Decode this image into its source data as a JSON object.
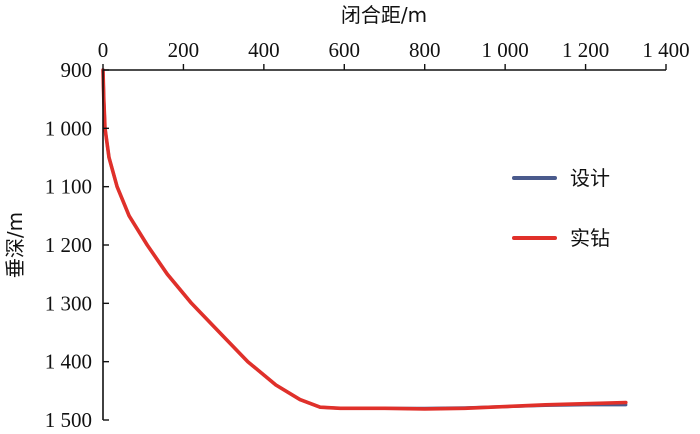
{
  "chart_data": {
    "type": "line",
    "xlabel": "闭合距/m",
    "ylabel": "垂深/m",
    "xlim": [
      0,
      1400
    ],
    "ylim": [
      900,
      1500
    ],
    "y_inverted": true,
    "x_axis_position": "top",
    "grid": false,
    "legend_position": "right",
    "x_ticks": [
      0,
      200,
      400,
      600,
      800,
      1000,
      1200,
      1400
    ],
    "x_tick_labels": [
      "0",
      "200",
      "400",
      "600",
      "800",
      "1 000",
      "1 200",
      "1 400"
    ],
    "y_ticks": [
      900,
      1000,
      1100,
      1200,
      1300,
      1400,
      1500
    ],
    "y_tick_labels": [
      "900",
      "1 000",
      "1 100",
      "1 200",
      "1 300",
      "1 400",
      "1 500"
    ],
    "series": [
      {
        "name": "设计",
        "color": "#4a5a8c",
        "x": [
          0,
          2,
          5,
          15,
          35,
          65,
          110,
          160,
          220,
          290,
          360,
          430,
          490,
          540,
          590,
          700,
          800,
          900,
          1000,
          1100,
          1200,
          1300
        ],
        "y": [
          900,
          950,
          1000,
          1050,
          1100,
          1150,
          1200,
          1250,
          1300,
          1350,
          1400,
          1440,
          1465,
          1478,
          1480,
          1480,
          1480,
          1479,
          1477,
          1475,
          1474,
          1474
        ]
      },
      {
        "name": "实钻",
        "color": "#e0302a",
        "x": [
          0,
          2,
          5,
          15,
          35,
          65,
          110,
          160,
          220,
          290,
          360,
          430,
          490,
          540,
          590,
          700,
          800,
          900,
          1000,
          1100,
          1200,
          1300
        ],
        "y": [
          900,
          950,
          1000,
          1050,
          1100,
          1150,
          1200,
          1250,
          1300,
          1350,
          1400,
          1440,
          1465,
          1478,
          1480,
          1480,
          1481,
          1480,
          1477,
          1474,
          1472,
          1470
        ]
      }
    ]
  }
}
